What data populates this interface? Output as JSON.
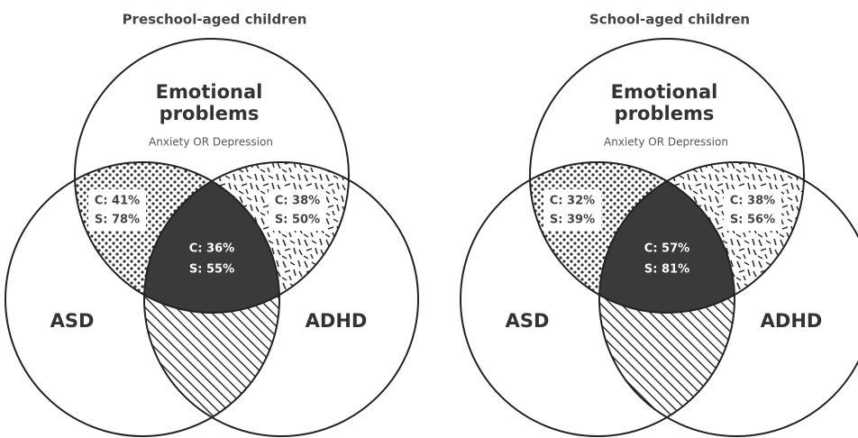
{
  "panels": [
    {
      "title": "Preschool-aged children",
      "top": {
        "label": [
          "Emotional",
          "problems"
        ],
        "sublabel": "Anxiety OR Depression"
      },
      "left": "ASD",
      "right": "ADHD",
      "regions": {
        "top_left": [
          "C: 41%",
          "S: 78%"
        ],
        "top_right": [
          "C: 38%",
          "S: 50%"
        ],
        "center": [
          "C: 36%",
          "S: 55%"
        ]
      }
    },
    {
      "title": "School-aged children",
      "top": {
        "label": [
          "Emotional",
          "problems"
        ],
        "sublabel": "Anxiety OR Depression"
      },
      "left": "ASD",
      "right": "ADHD",
      "regions": {
        "top_left": [
          "C: 32%",
          "S: 39%"
        ],
        "top_right": [
          "C: 38%",
          "S: 56%"
        ],
        "center": [
          "C: 57%",
          "S: 81%"
        ]
      }
    }
  ]
}
